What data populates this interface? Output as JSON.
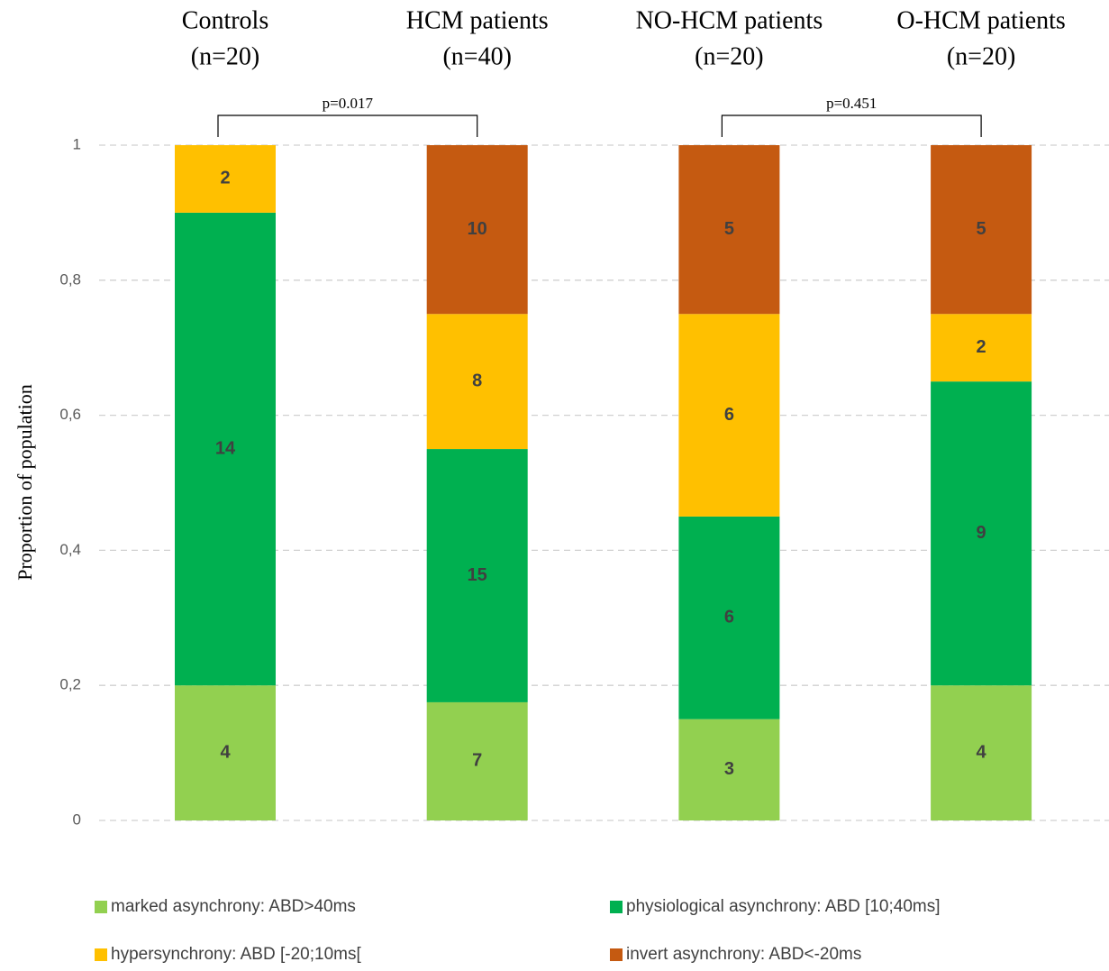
{
  "chart_data": {
    "type": "stacked_bar",
    "categories": [
      "Controls",
      "HCM patients",
      "NO-HCM patients",
      "O-HCM patients"
    ],
    "category_sublabels": [
      "(n=20)",
      "(n=40)",
      "(n=20)",
      "(n=20)"
    ],
    "y_label": "Proportion of population",
    "ylim": [
      0,
      1
    ],
    "yticks": [
      0,
      {
        "value": 0.2,
        "label": "0,2"
      },
      {
        "value": 0.4,
        "label": "0,4"
      },
      {
        "value": 0.6,
        "label": "0,6"
      },
      {
        "value": 0.8,
        "label": "0,8"
      },
      1
    ],
    "grid": true,
    "series": [
      {
        "name": "marked asynchrony: ABD>40ms",
        "color": "#92d050",
        "values": [
          0.2,
          0.175,
          0.15,
          0.2
        ],
        "counts": [
          4,
          7,
          3,
          4
        ]
      },
      {
        "name": "physiological asynchrony: ABD [10;40ms]",
        "color": "#00b050",
        "values": [
          0.7,
          0.375,
          0.3,
          0.45
        ],
        "counts": [
          14,
          15,
          6,
          9
        ]
      },
      {
        "name": "hypersynchrony: ABD [-20;10ms[",
        "color": "#ffc000",
        "values": [
          0.1,
          0.2,
          0.3,
          0.1
        ],
        "counts": [
          2,
          8,
          6,
          2
        ]
      },
      {
        "name": "invert asynchrony: ABD<-20ms",
        "color": "#c55a11",
        "values": [
          0,
          0.25,
          0.25,
          0.25
        ],
        "counts": [
          null,
          10,
          5,
          5
        ]
      }
    ],
    "annotations": [
      {
        "text": "p=0.017",
        "between": [
          "Controls",
          "HCM patients"
        ]
      },
      {
        "text": "p=0.451",
        "between": [
          "NO-HCM patients",
          "O-HCM patients"
        ]
      }
    ]
  }
}
